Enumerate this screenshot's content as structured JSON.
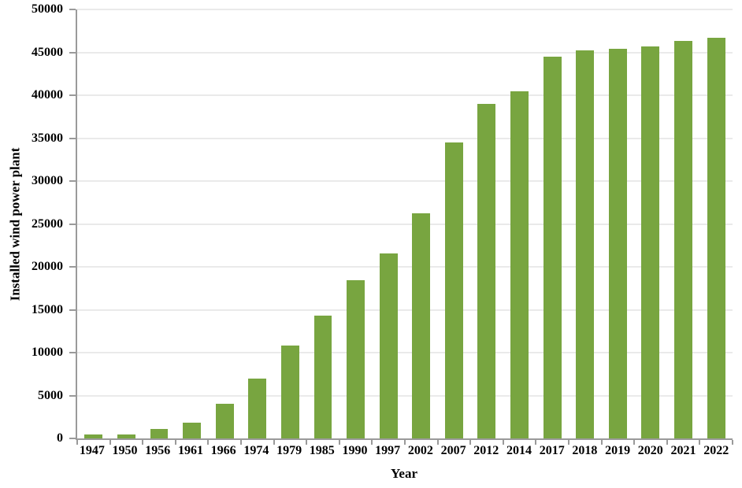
{
  "chart_data": {
    "type": "bar",
    "title": "",
    "xlabel": "Year",
    "ylabel": "Installed wind power plant",
    "categories": [
      "1947",
      "1950",
      "1956",
      "1961",
      "1966",
      "1974",
      "1979",
      "1985",
      "1990",
      "1997",
      "2002",
      "2007",
      "2012",
      "2014",
      "2017",
      "2018",
      "2019",
      "2020",
      "2021",
      "2022"
    ],
    "values": [
      500,
      500,
      1100,
      1800,
      4000,
      7000,
      10800,
      14300,
      18400,
      21600,
      26200,
      34500,
      39000,
      40500,
      44500,
      45200,
      45400,
      45700,
      46300,
      46700
    ],
    "ylim": [
      0,
      50000
    ],
    "ytick_step": 5000,
    "yticks": [
      0,
      5000,
      10000,
      15000,
      20000,
      25000,
      30000,
      35000,
      40000,
      45000,
      50000
    ],
    "grid": true,
    "legend_position": "none",
    "bar_color": "#78a540",
    "gridline_color": "#d6d6d6",
    "axis_color": "#9a9a9a",
    "text_color": "#000000"
  }
}
